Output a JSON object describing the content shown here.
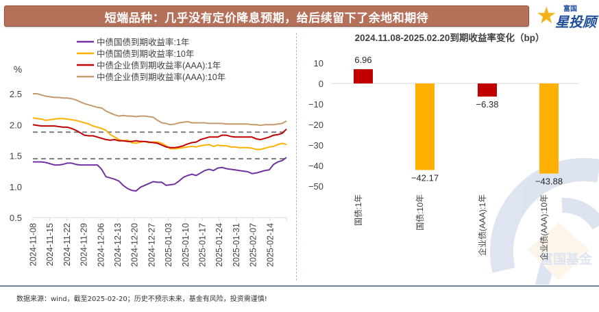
{
  "header": {
    "title": "短端品种：几乎没有定价降息预期，给后续留下了余地和期待",
    "logo_small": "富国",
    "logo_big": "星投顾"
  },
  "footer": {
    "source_note": "数据来源：wind，截至2025-02-20；历史不预示未来，基金有风险，投资需谨慎!"
  },
  "watermark": {
    "text": "富国基金"
  },
  "colors": {
    "gov_1y": "#7030a0",
    "gov_10y": "#ffb000",
    "corp_1y": "#c00000",
    "corp_10y": "#c49a6c",
    "reference_dash": "#808080",
    "title_bar": "#b5705a"
  },
  "chart_data": [
    {
      "type": "line",
      "title": "",
      "ylabel": "%",
      "xlabel": "",
      "ylim": [
        0.5,
        2.5
      ],
      "yticks": [
        "2.5",
        "2.0",
        "1.5",
        "1.0",
        "0.5"
      ],
      "ytick_values": [
        2.5,
        2.0,
        1.5,
        1.0,
        0.5
      ],
      "grid": false,
      "legend_position": "top",
      "x_tick_labels": [
        "2024-11-08",
        "2024-11-15",
        "2024-11-22",
        "2024-11-29",
        "2024-12-06",
        "2024-12-13",
        "2024-12-20",
        "2024-12-27",
        "2025-01-03",
        "2025-01-10",
        "2025-01-17",
        "2025-01-24",
        "2025-01-31",
        "2025-02-07",
        "2025-02-14"
      ],
      "x_range": [
        "2024-11-08",
        "2025-02-20"
      ],
      "reference_lines": [
        1.88,
        1.45
      ],
      "series": [
        {
          "name": "中债国债到期收益率:1年",
          "color": "#7030a0",
          "values": [
            1.4,
            1.4,
            1.4,
            1.39,
            1.37,
            1.35,
            1.35,
            1.36,
            1.38,
            1.38,
            1.36,
            1.35,
            1.35,
            1.35,
            1.35,
            1.35,
            1.28,
            1.16,
            1.14,
            1.12,
            1.09,
            1.02,
            0.97,
            0.94,
            0.93,
            0.99,
            1.02,
            1.05,
            1.08,
            1.07,
            1.07,
            1.02,
            1.03,
            1.04,
            1.09,
            1.15,
            1.18,
            1.2,
            1.18,
            1.22,
            1.26,
            1.28,
            1.26,
            1.3,
            1.31,
            1.29,
            1.28,
            1.27,
            1.26,
            1.25,
            1.24,
            1.21,
            1.22,
            1.24,
            1.26,
            1.27,
            1.36,
            1.4,
            1.42,
            1.47
          ]
        },
        {
          "name": "中债国债到期收益率:10年",
          "color": "#ffb000",
          "values": [
            2.11,
            2.1,
            2.09,
            2.07,
            2.08,
            2.09,
            2.1,
            2.1,
            2.09,
            2.08,
            2.07,
            2.05,
            2.03,
            2.01,
            1.98,
            1.96,
            1.94,
            1.91,
            1.84,
            1.8,
            1.76,
            1.74,
            1.75,
            1.71,
            1.7,
            1.72,
            1.73,
            1.71,
            1.72,
            1.72,
            1.7,
            1.66,
            1.61,
            1.61,
            1.62,
            1.63,
            1.64,
            1.65,
            1.64,
            1.66,
            1.67,
            1.68,
            1.65,
            1.67,
            1.66,
            1.66,
            1.64,
            1.64,
            1.63,
            1.63,
            1.63,
            1.62,
            1.6,
            1.6,
            1.62,
            1.64,
            1.65,
            1.68,
            1.7,
            1.68
          ]
        },
        {
          "name": "中债企业债到期收益率(AAA):1年",
          "color": "#c00000",
          "values": [
            2.0,
            1.99,
            1.98,
            1.98,
            1.98,
            1.98,
            1.97,
            1.96,
            1.96,
            1.94,
            1.91,
            1.87,
            1.83,
            1.82,
            1.82,
            1.8,
            1.78,
            1.76,
            1.75,
            1.76,
            1.74,
            1.74,
            1.73,
            1.73,
            1.74,
            1.73,
            1.73,
            1.72,
            1.71,
            1.7,
            1.67,
            1.64,
            1.63,
            1.63,
            1.64,
            1.66,
            1.69,
            1.71,
            1.72,
            1.76,
            1.78,
            1.8,
            1.8,
            1.8,
            1.83,
            1.83,
            1.81,
            1.8,
            1.8,
            1.8,
            1.8,
            1.8,
            1.77,
            1.76,
            1.78,
            1.8,
            1.83,
            1.84,
            1.86,
            1.93
          ]
        },
        {
          "name": "中债企业债到期收益率(AAA):10年",
          "color": "#c49a6c",
          "values": [
            2.5,
            2.5,
            2.48,
            2.46,
            2.45,
            2.44,
            2.44,
            2.43,
            2.43,
            2.42,
            2.4,
            2.37,
            2.34,
            2.32,
            2.3,
            2.28,
            2.27,
            2.22,
            2.19,
            2.16,
            2.14,
            2.15,
            2.14,
            2.14,
            2.13,
            2.14,
            2.14,
            2.13,
            2.12,
            2.07,
            2.03,
            2.02,
            2.0,
            2.01,
            2.03,
            2.04,
            2.05,
            2.03,
            2.03,
            2.03,
            2.03,
            2.02,
            2.02,
            2.02,
            2.02,
            2.01,
            2.01,
            2.01,
            2.01,
            2.01,
            2.01,
            2.0,
            2.0,
            1.99,
            2.0,
            2.0,
            2.0,
            2.01,
            2.02,
            2.06
          ]
        }
      ]
    },
    {
      "type": "bar",
      "title": "2024.11.08-2025.02.20到期收益率变化（bp）",
      "xlabel": "",
      "ylabel": "",
      "ylim": [
        -50,
        10
      ],
      "yticks": [
        "10",
        "0",
        "−10",
        "−20",
        "−30",
        "−40",
        "−50"
      ],
      "ytick_values": [
        10,
        0,
        -10,
        -20,
        -30,
        -40,
        -50
      ],
      "grid": false,
      "categories": [
        "国债:1年",
        "国债:10年",
        "企业债(AAA):1年",
        "企业债(AAA):10年"
      ],
      "values": [
        6.96,
        -42.17,
        -6.38,
        -43.88
      ],
      "data_labels": [
        "6.96",
        "−42.17",
        "−6.38",
        "−43.88"
      ],
      "bar_colors": [
        "#c00000",
        "#ffb000",
        "#c00000",
        "#ffb000"
      ]
    }
  ]
}
